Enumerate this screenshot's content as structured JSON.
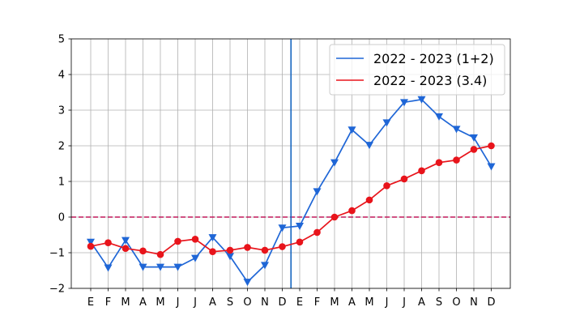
{
  "chart_data": {
    "type": "line",
    "title": "",
    "xlabel": "",
    "ylabel": "",
    "categories": [
      "E",
      "F",
      "M",
      "A",
      "M",
      "J",
      "J",
      "A",
      "S",
      "O",
      "N",
      "D",
      "E",
      "F",
      "M",
      "A",
      "M",
      "J",
      "J",
      "A",
      "S",
      "O",
      "N",
      "D"
    ],
    "ylim": [
      -2,
      5
    ],
    "yticks": [
      -2,
      -1,
      0,
      1,
      2,
      3,
      4,
      5
    ],
    "grid": true,
    "legend_position": "top-right",
    "reference_line": {
      "y": 0,
      "style": "dashed",
      "color": "#c2185b"
    },
    "vertical_line": {
      "between": "D-E",
      "color": "#1565c0"
    },
    "series": [
      {
        "name": "2022 - 2023 (1+2)",
        "color": "#1f66d6",
        "marker": "triangle-down",
        "values": [
          -0.7,
          -1.42,
          -0.65,
          -1.4,
          -1.4,
          -1.4,
          -1.15,
          -0.57,
          -1.1,
          -1.82,
          -1.35,
          -0.3,
          -0.25,
          0.72,
          1.53,
          2.45,
          2.02,
          2.65,
          3.22,
          3.3,
          2.82,
          2.47,
          2.23,
          1.42
        ]
      },
      {
        "name": "2022 - 2023 (3.4)",
        "color": "#e8141b",
        "marker": "circle",
        "values": [
          -0.82,
          -0.72,
          -0.88,
          -0.95,
          -1.05,
          -0.68,
          -0.62,
          -0.97,
          -0.93,
          -0.85,
          -0.93,
          -0.83,
          -0.7,
          -0.43,
          0.0,
          0.18,
          0.48,
          0.88,
          1.07,
          1.3,
          1.53,
          1.6,
          1.9,
          2.0
        ]
      }
    ]
  }
}
